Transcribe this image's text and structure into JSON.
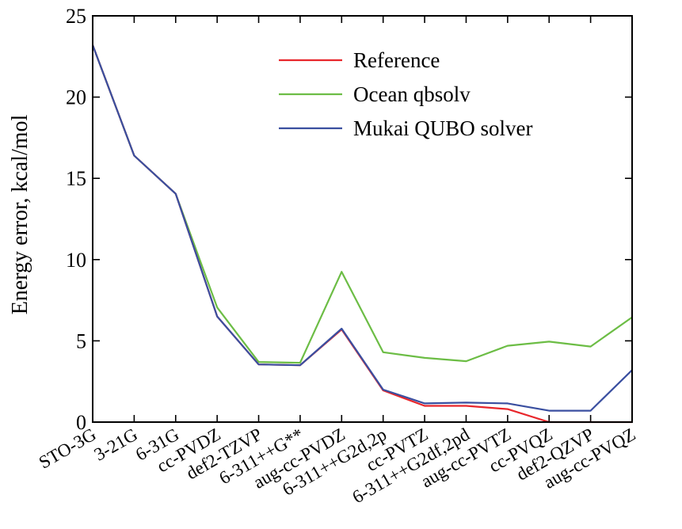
{
  "chart_data": {
    "type": "line",
    "title": "",
    "xlabel": "",
    "ylabel": "Energy error, kcal/mol",
    "ylim": [
      0,
      25
    ],
    "yticks": [
      0,
      5,
      10,
      15,
      20,
      25
    ],
    "grid": false,
    "legend_position": "top-right",
    "categories": [
      "STO-3G",
      "3-21G",
      "6-31G",
      "cc-PVDZ",
      "def2-TZVP",
      "6-311++G**",
      "aug-cc-PVDZ",
      "6-311++G2d,2p",
      "cc-PVTZ",
      "6-311++G2df,2pd",
      "aug-cc-PVTZ",
      "cc-PVQZ",
      "def2-QZVP",
      "aug-cc-PVQZ"
    ],
    "series": [
      {
        "name": "Reference",
        "color": "#e8262b",
        "values": [
          23.2,
          16.4,
          14.05,
          6.5,
          3.55,
          3.5,
          5.7,
          1.95,
          1.0,
          1.0,
          0.8,
          0.0,
          0.0,
          0.0
        ]
      },
      {
        "name": "Ocean qbsolv",
        "color": "#6cbd45",
        "values": [
          23.2,
          16.4,
          14.05,
          7.05,
          3.7,
          3.65,
          9.25,
          4.3,
          3.95,
          3.75,
          4.7,
          4.95,
          4.65,
          6.45
        ]
      },
      {
        "name": "Mukai QUBO solver",
        "color": "#3a4fa0",
        "values": [
          23.2,
          16.4,
          14.05,
          6.5,
          3.55,
          3.5,
          5.75,
          2.0,
          1.15,
          1.2,
          1.15,
          0.7,
          0.7,
          3.2
        ]
      }
    ]
  }
}
